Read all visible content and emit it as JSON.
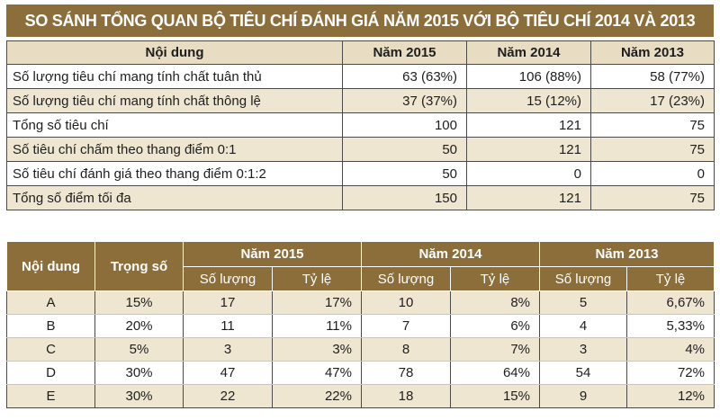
{
  "table1": {
    "title": "SO SÁNH TỔNG QUAN BỘ TIÊU CHÍ ĐÁNH GIÁ NĂM 2015 VỚI BỘ TIÊU CHÍ 2014 VÀ 2013",
    "headers": [
      "Nội dung",
      "Năm 2015",
      "Năm 2014",
      "Năm 2013"
    ],
    "rows": [
      {
        "label": "Số lượng tiêu chí mang tính chất tuân thủ",
        "y2015": "63 (63%)",
        "y2014": "106 (88%)",
        "y2013": "58 (77%)"
      },
      {
        "label": "Số lượng tiêu chí mang tính chất thông lệ",
        "y2015": "37 (37%)",
        "y2014": "15 (12%)",
        "y2013": "17 (23%)"
      },
      {
        "label": "Tổng số tiêu chí",
        "y2015": "100",
        "y2014": "121",
        "y2013": "75"
      },
      {
        "label": "Số tiêu chí chấm theo thang điểm 0:1",
        "y2015": "50",
        "y2014": "121",
        "y2013": "75"
      },
      {
        "label": "Số tiêu chí đánh giá theo thang điểm 0:1:2",
        "y2015": "50",
        "y2014": "0",
        "y2013": "0"
      },
      {
        "label": "Tổng số điểm tối đa",
        "y2015": "150",
        "y2014": "121",
        "y2013": "75"
      }
    ]
  },
  "table2": {
    "headers": {
      "content": "Nội dung",
      "weight": "Trọng số",
      "y2015": "Năm 2015",
      "y2014": "Năm 2014",
      "y2013": "Năm 2013"
    },
    "subheaders": {
      "count": "Số lượng",
      "ratio": "Tỷ lệ"
    },
    "rows": [
      {
        "content": "A",
        "weight": "15%",
        "c2015": "17",
        "r2015": "17%",
        "c2014": "10",
        "r2014": "8%",
        "c2013": "5",
        "r2013": "6,67%"
      },
      {
        "content": "B",
        "weight": "20%",
        "c2015": "11",
        "r2015": "11%",
        "c2014": "7",
        "r2014": "6%",
        "c2013": "4",
        "r2013": "5,33%"
      },
      {
        "content": "C",
        "weight": "5%",
        "c2015": "3",
        "r2015": "3%",
        "c2014": "8",
        "r2014": "7%",
        "c2013": "3",
        "r2013": "4%"
      },
      {
        "content": "D",
        "weight": "30%",
        "c2015": "47",
        "r2015": "47%",
        "c2014": "78",
        "r2014": "64%",
        "c2013": "54",
        "r2013": "72%"
      },
      {
        "content": "E",
        "weight": "30%",
        "c2015": "22",
        "r2015": "22%",
        "c2014": "18",
        "r2014": "15%",
        "c2013": "9",
        "r2013": "12%"
      }
    ]
  }
}
